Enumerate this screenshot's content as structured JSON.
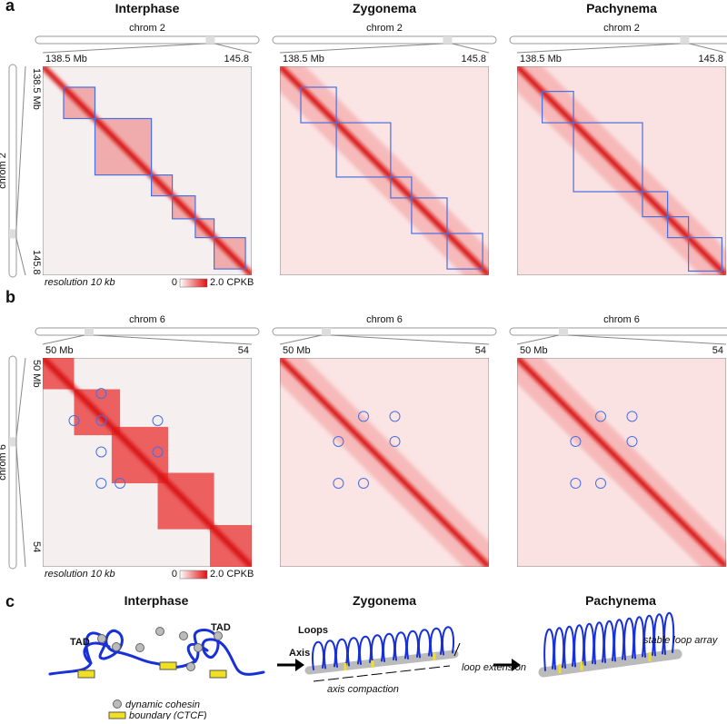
{
  "panel_a": {
    "label": "a",
    "stages": [
      "Interphase",
      "Zygonema",
      "Pachynema"
    ],
    "chromosome": "chrom 2",
    "start": "138.5 Mb",
    "end": "145.8",
    "resolution": "resolution 10 kb",
    "scale_min": "0",
    "scale_max": "2.0 CPKB"
  },
  "panel_b": {
    "label": "b",
    "chromosome": "chrom 6",
    "start": "50 Mb",
    "end": "54",
    "resolution": "resolution 10 kb",
    "scale_min": "0",
    "scale_max": "2.0 CPKB"
  },
  "panel_c": {
    "label": "c",
    "stages": [
      "Interphase",
      "Zygonema",
      "Pachynema"
    ],
    "tad": "TAD",
    "cohesin": "dynamic cohesin",
    "boundary": "boundary (CTCF)",
    "loops": "Loops",
    "axis": "Axis",
    "loop_extension": "loop extension",
    "axis_compaction": "axis compaction",
    "stable_loop_array": "stable loop array"
  }
}
